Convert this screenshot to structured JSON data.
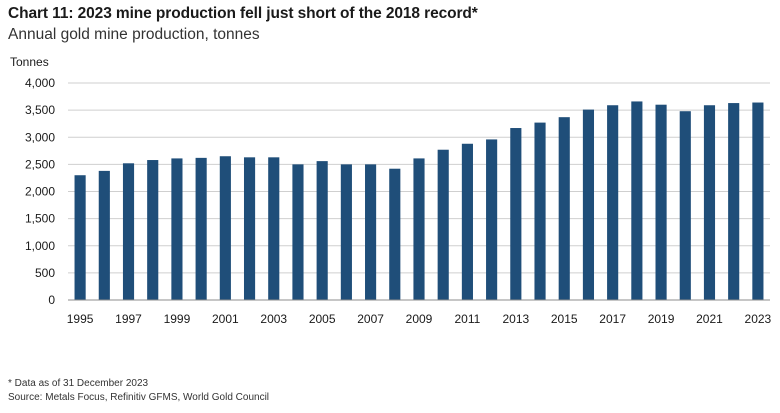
{
  "title": "Chart 11: 2023 mine production fell just short of the 2018 record*",
  "subtitle": "Annual gold mine production, tonnes",
  "footnote": "* Data as of 31 December 2023",
  "source": "Source: Metals Focus, Refinitiv GFMS, World Gold Council",
  "colors": {
    "bar": "#1f4e79",
    "grid": "#cfcfcf",
    "axis": "#8c8c8c"
  },
  "chart_data": {
    "type": "bar",
    "ylabel": "Tonnes",
    "xlabel": "",
    "ylim": [
      0,
      4000
    ],
    "yticks": [
      0,
      500,
      1000,
      1500,
      2000,
      2500,
      3000,
      3500,
      4000
    ],
    "ytick_labels": [
      "0",
      "500",
      "1,000",
      "1,500",
      "2,000",
      "2,500",
      "3,000",
      "3,500",
      "4,000"
    ],
    "grid": true,
    "categories": [
      "1995",
      "1996",
      "1997",
      "1998",
      "1999",
      "2000",
      "2001",
      "2002",
      "2003",
      "2004",
      "2005",
      "2006",
      "2007",
      "2008",
      "2009",
      "2010",
      "2011",
      "2012",
      "2013",
      "2014",
      "2015",
      "2016",
      "2017",
      "2018",
      "2019",
      "2020",
      "2021",
      "2022",
      "2023"
    ],
    "xtick_labels": [
      "1995",
      "1997",
      "1999",
      "2001",
      "2003",
      "2005",
      "2007",
      "2009",
      "2011",
      "2013",
      "2015",
      "2017",
      "2019",
      "2021",
      "2023"
    ],
    "values": [
      2300,
      2380,
      2520,
      2580,
      2610,
      2620,
      2650,
      2630,
      2630,
      2500,
      2560,
      2500,
      2500,
      2420,
      2610,
      2770,
      2880,
      2960,
      3170,
      3270,
      3370,
      3510,
      3590,
      3660,
      3600,
      3480,
      3590,
      3630,
      3640
    ]
  }
}
